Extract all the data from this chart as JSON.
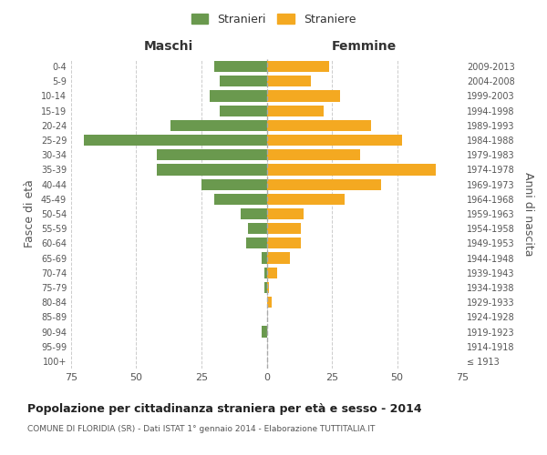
{
  "age_groups": [
    "100+",
    "95-99",
    "90-94",
    "85-89",
    "80-84",
    "75-79",
    "70-74",
    "65-69",
    "60-64",
    "55-59",
    "50-54",
    "45-49",
    "40-44",
    "35-39",
    "30-34",
    "25-29",
    "20-24",
    "15-19",
    "10-14",
    "5-9",
    "0-4"
  ],
  "birth_years": [
    "≤ 1913",
    "1914-1918",
    "1919-1923",
    "1924-1928",
    "1929-1933",
    "1934-1938",
    "1939-1943",
    "1944-1948",
    "1949-1953",
    "1954-1958",
    "1959-1963",
    "1964-1968",
    "1969-1973",
    "1974-1978",
    "1979-1983",
    "1984-1988",
    "1989-1993",
    "1994-1998",
    "1999-2003",
    "2004-2008",
    "2009-2013"
  ],
  "maschi": [
    0,
    0,
    2,
    0,
    0,
    1,
    1,
    2,
    8,
    7,
    10,
    20,
    25,
    42,
    42,
    70,
    37,
    18,
    22,
    18,
    20
  ],
  "femmine": [
    0,
    0,
    0,
    0,
    2,
    1,
    4,
    9,
    13,
    13,
    14,
    30,
    44,
    65,
    36,
    52,
    40,
    22,
    28,
    17,
    24
  ],
  "maschi_color": "#6a994e",
  "femmine_color": "#f4a921",
  "title": "Popolazione per cittadinanza straniera per età e sesso - 2014",
  "subtitle": "COMUNE DI FLORIDIA (SR) - Dati ISTAT 1° gennaio 2014 - Elaborazione TUTTITALIA.IT",
  "xlabel_left": "Maschi",
  "xlabel_right": "Femmine",
  "ylabel_left": "Fasce di età",
  "ylabel_right": "Anni di nascita",
  "legend_stranieri": "Stranieri",
  "legend_straniere": "Straniere",
  "xlim": 75,
  "background_color": "#ffffff",
  "grid_color": "#cccccc"
}
